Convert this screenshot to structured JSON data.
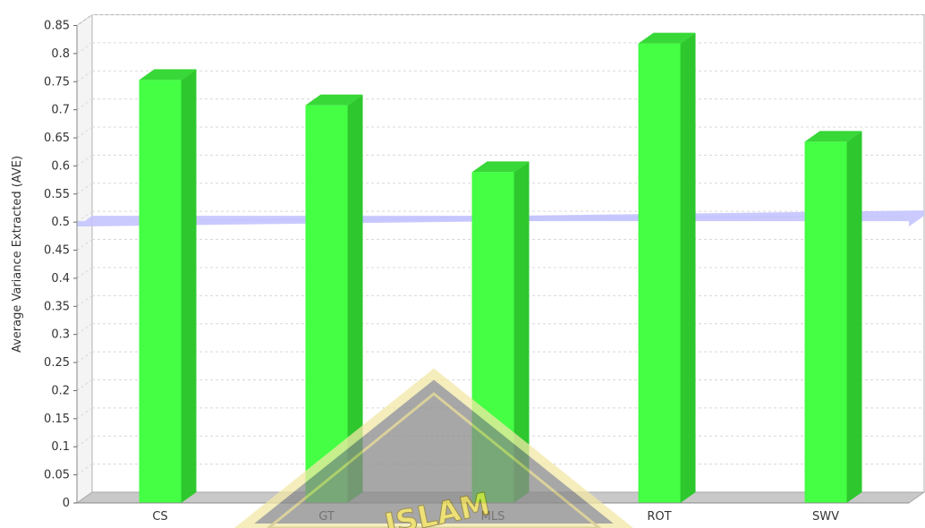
{
  "chart_data": {
    "type": "bar",
    "categories": [
      "CS",
      "GT",
      "MLS",
      "ROT",
      "SWV"
    ],
    "values": [
      0.753,
      0.708,
      0.589,
      0.818,
      0.643
    ],
    "ylabel": "Average Variance Extracted (AVE)",
    "xlabel": "",
    "ylim": [
      0,
      0.85
    ],
    "yticks": [
      "0",
      "0.05",
      "0.1",
      "0.15",
      "0.2",
      "0.25",
      "0.3",
      "0.35",
      "0.4",
      "0.45",
      "0.5",
      "0.55",
      "0.6",
      "0.65",
      "0.7",
      "0.75",
      "0.8",
      "0.85"
    ],
    "threshold": 0.5,
    "grid": true,
    "legend": "none",
    "bar_color": "#44ff44",
    "threshold_color": "#c4c4ff"
  },
  "watermark": {
    "text": "ISLAM"
  }
}
